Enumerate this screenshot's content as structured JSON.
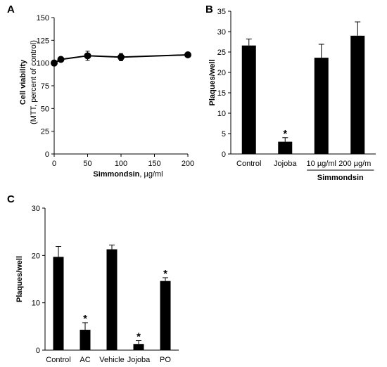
{
  "chart_data": [
    {
      "panel": "A",
      "type": "line",
      "x": [
        0,
        10,
        50,
        100,
        200
      ],
      "y": [
        100,
        104,
        108,
        106.5,
        109
      ],
      "yerr": [
        3,
        2,
        5,
        4,
        2
      ],
      "xlabel_bold": "Simmondsin",
      "xlabel_unit": ", µg/ml",
      "ylabel": "Cell viability",
      "ylabel_sub": "(MTT, percent of control)",
      "xlim": [
        0,
        200
      ],
      "ylim": [
        0,
        150
      ],
      "xticks": [
        "0",
        "50",
        "100",
        "150",
        "200"
      ],
      "yticks": [
        "0",
        "25",
        "50",
        "75",
        "100",
        "125",
        "150"
      ],
      "grid": false
    },
    {
      "panel": "B",
      "type": "bar",
      "categories": [
        "Control",
        "Jojoba",
        "10 µg/ml",
        "200 µg/m"
      ],
      "values": [
        26.6,
        3.0,
        23.6,
        29.0
      ],
      "errors": [
        1.6,
        1.0,
        3.3,
        3.4
      ],
      "significant": [
        false,
        true,
        false,
        false
      ],
      "group_label": "Simmondsin",
      "ylabel": "Plaques/well",
      "ylim": [
        0,
        35
      ],
      "yticks": [
        "0",
        "5",
        "10",
        "15",
        "20",
        "25",
        "30",
        "35"
      ],
      "star": "*",
      "grid": false
    },
    {
      "panel": "C",
      "type": "bar",
      "categories": [
        "Control",
        "AC",
        "Vehicle",
        "Jojoba",
        "PO"
      ],
      "values": [
        19.7,
        4.3,
        21.3,
        1.3,
        14.6
      ],
      "errors": [
        2.2,
        1.5,
        0.9,
        0.7,
        0.7
      ],
      "significant": [
        false,
        true,
        false,
        true,
        true
      ],
      "ylabel": "Plaques/well",
      "ylim": [
        0,
        30
      ],
      "yticks": [
        "0",
        "10",
        "20",
        "30"
      ],
      "star": "*",
      "grid": false
    }
  ]
}
